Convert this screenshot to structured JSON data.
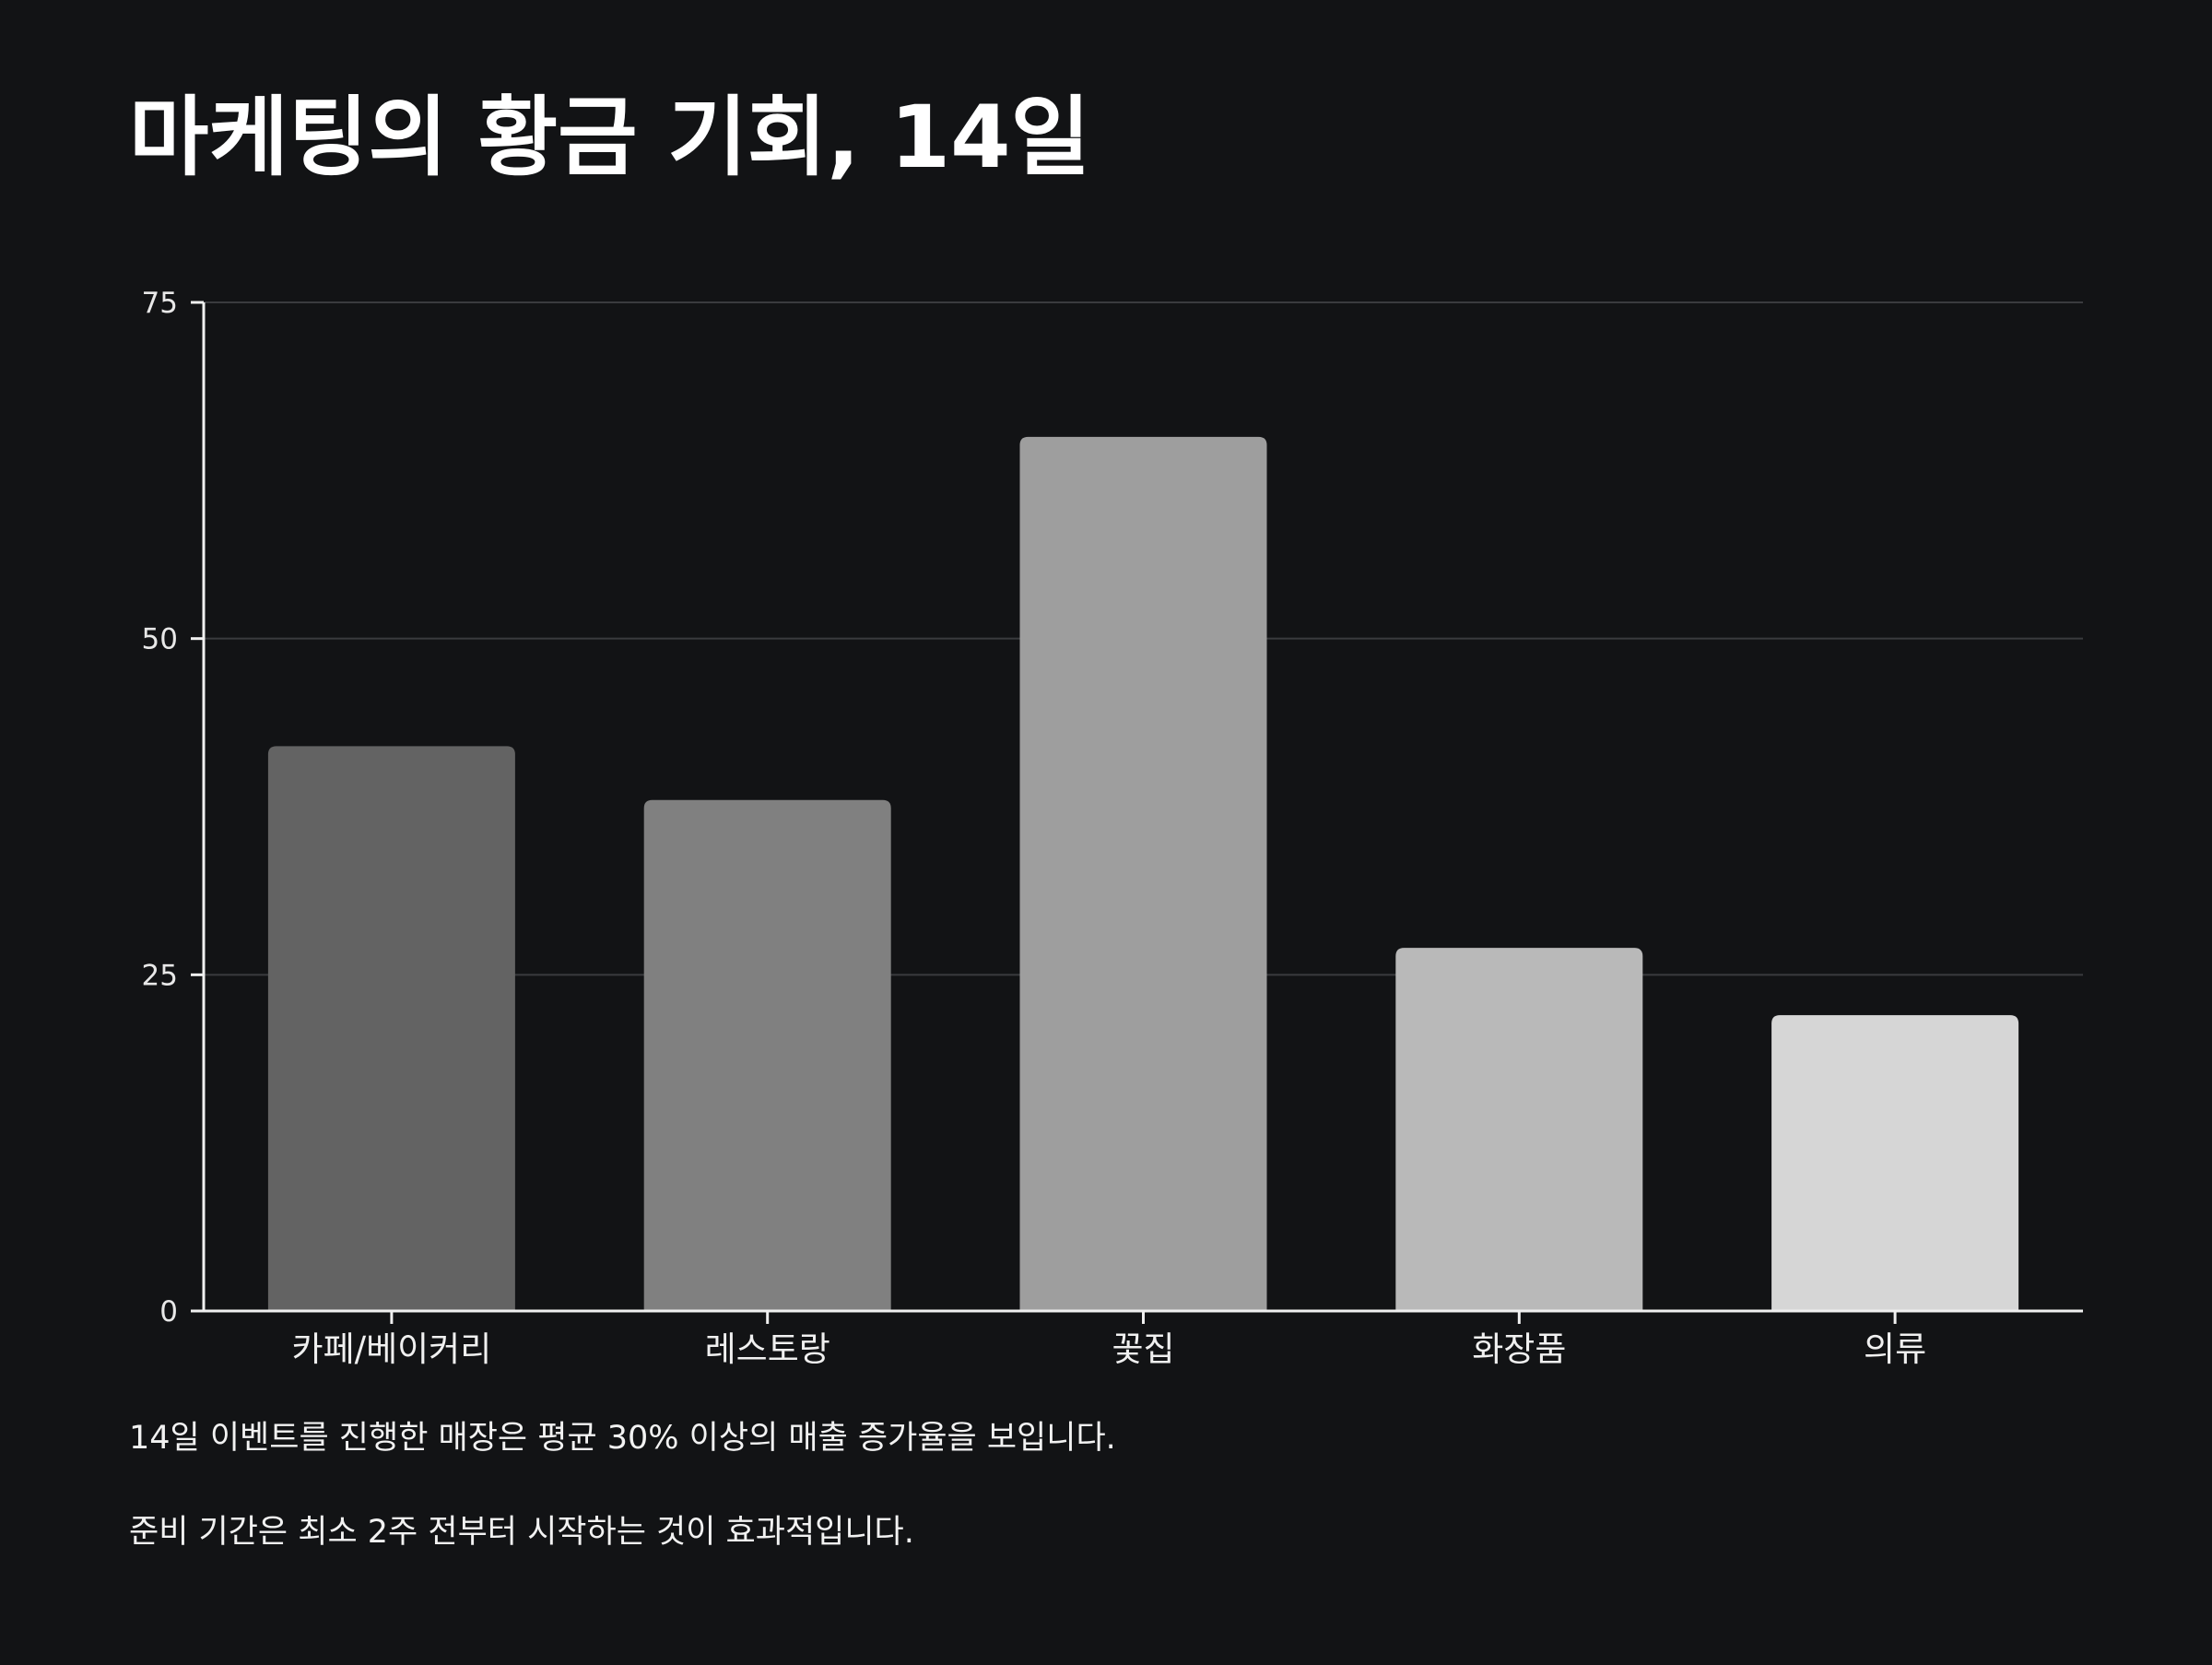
{
  "title": "마케팅의 황금 기회, 14일",
  "notes": [
    "14일 이벤트를 진행한 매장은 평균 30% 이상의 매출 증가율을 보입니다.",
    "준비 기간은 최소 2주 전부터 시작하는 것이 효과적입니다."
  ],
  "chart_data": {
    "type": "bar",
    "title": "",
    "xlabel": "",
    "ylabel": "",
    "categories": [
      "카페/베이커리",
      "레스토랑",
      "꽃집",
      "화장품",
      "의류"
    ],
    "values": [
      42,
      38,
      65,
      27,
      22
    ],
    "ylim": [
      0,
      75
    ],
    "yticks": [
      0,
      25,
      50,
      75
    ],
    "grid": true,
    "legend": "none",
    "bar_colors": [
      "#636363",
      "#808080",
      "#9e9e9e",
      "#b9b9b9",
      "#d6d6d6"
    ],
    "background": "#121315"
  }
}
